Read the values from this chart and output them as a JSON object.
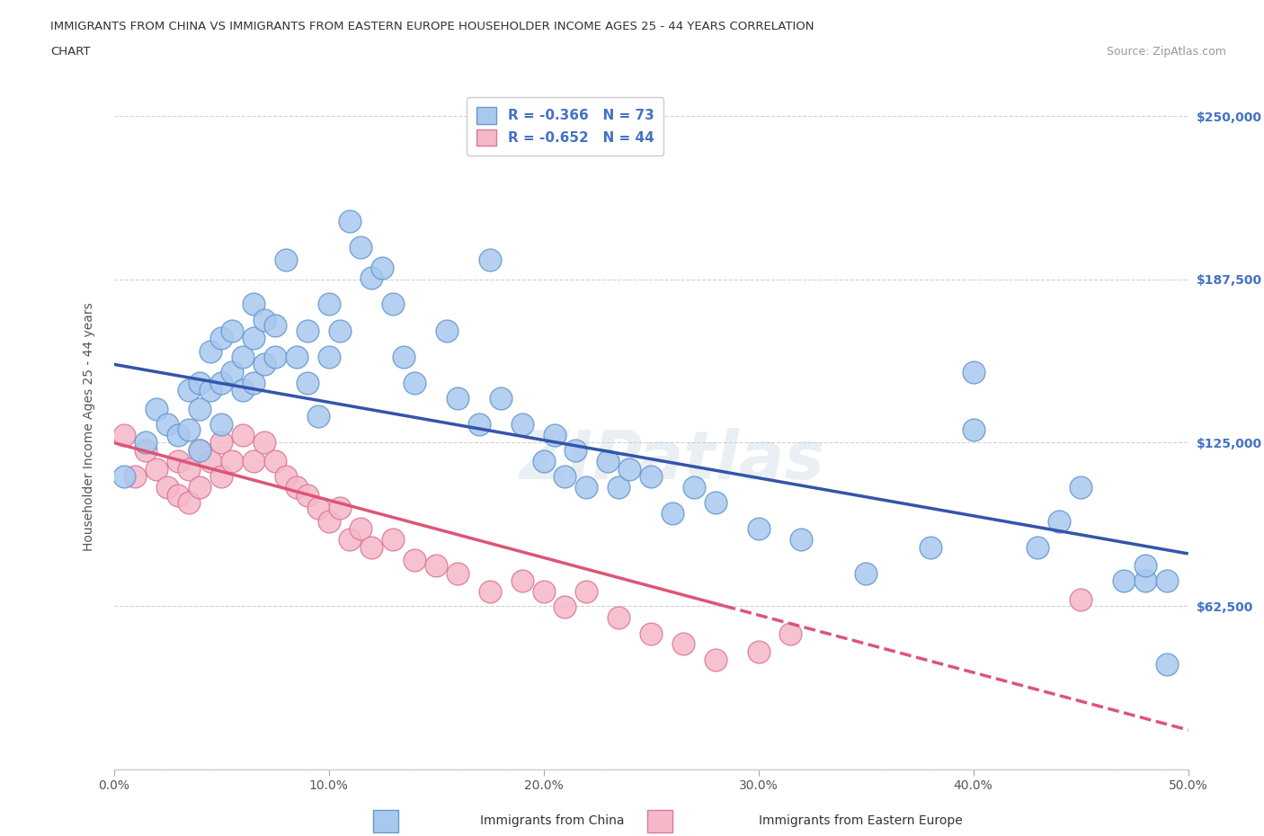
{
  "title_line1": "IMMIGRANTS FROM CHINA VS IMMIGRANTS FROM EASTERN EUROPE HOUSEHOLDER INCOME AGES 25 - 44 YEARS CORRELATION",
  "title_line2": "CHART",
  "source_text": "Source: ZipAtlas.com",
  "ylabel": "Householder Income Ages 25 - 44 years",
  "xlim": [
    0.0,
    0.5
  ],
  "ylim": [
    0,
    262500
  ],
  "xticks": [
    0.0,
    0.1,
    0.2,
    0.3,
    0.4,
    0.5
  ],
  "xticklabels": [
    "0.0%",
    "10.0%",
    "20.0%",
    "30.0%",
    "40.0%",
    "50.0%"
  ],
  "yticks": [
    0,
    62500,
    125000,
    187500,
    250000
  ],
  "yticklabels": [
    "",
    "$62,500",
    "$125,000",
    "$187,500",
    "$250,000"
  ],
  "china_color": "#A8C8EF",
  "china_edge_color": "#6699CC",
  "eastern_color": "#F5B8C8",
  "eastern_edge_color": "#DD7799",
  "china_R": -0.366,
  "china_N": 73,
  "eastern_R": -0.652,
  "eastern_N": 44,
  "trend_china_color": "#3355AA",
  "trend_eastern_color": "#DD5577",
  "watermark": "ZIPatlas",
  "grid_color": "#CCCCCC",
  "background_color": "#FFFFFF",
  "china_x": [
    0.005,
    0.015,
    0.02,
    0.025,
    0.03,
    0.035,
    0.035,
    0.04,
    0.04,
    0.04,
    0.045,
    0.045,
    0.05,
    0.05,
    0.05,
    0.055,
    0.055,
    0.06,
    0.06,
    0.065,
    0.065,
    0.065,
    0.07,
    0.07,
    0.075,
    0.075,
    0.08,
    0.085,
    0.09,
    0.09,
    0.095,
    0.1,
    0.1,
    0.105,
    0.11,
    0.115,
    0.12,
    0.125,
    0.13,
    0.135,
    0.14,
    0.155,
    0.16,
    0.17,
    0.175,
    0.18,
    0.19,
    0.2,
    0.205,
    0.21,
    0.215,
    0.22,
    0.23,
    0.235,
    0.24,
    0.25,
    0.26,
    0.27,
    0.28,
    0.3,
    0.32,
    0.35,
    0.38,
    0.4,
    0.4,
    0.43,
    0.44,
    0.45,
    0.47,
    0.48,
    0.48,
    0.49,
    0.49
  ],
  "china_y": [
    112000,
    125000,
    138000,
    132000,
    128000,
    145000,
    130000,
    148000,
    138000,
    122000,
    160000,
    145000,
    165000,
    148000,
    132000,
    168000,
    152000,
    158000,
    145000,
    178000,
    165000,
    148000,
    172000,
    155000,
    170000,
    158000,
    195000,
    158000,
    168000,
    148000,
    135000,
    158000,
    178000,
    168000,
    210000,
    200000,
    188000,
    192000,
    178000,
    158000,
    148000,
    168000,
    142000,
    132000,
    195000,
    142000,
    132000,
    118000,
    128000,
    112000,
    122000,
    108000,
    118000,
    108000,
    115000,
    112000,
    98000,
    108000,
    102000,
    92000,
    88000,
    75000,
    85000,
    130000,
    152000,
    85000,
    95000,
    108000,
    72000,
    72000,
    78000,
    40000,
    72000
  ],
  "eastern_x": [
    0.005,
    0.01,
    0.015,
    0.02,
    0.025,
    0.03,
    0.03,
    0.035,
    0.035,
    0.04,
    0.04,
    0.045,
    0.05,
    0.05,
    0.055,
    0.06,
    0.065,
    0.07,
    0.075,
    0.08,
    0.085,
    0.09,
    0.095,
    0.1,
    0.105,
    0.11,
    0.115,
    0.12,
    0.13,
    0.14,
    0.15,
    0.16,
    0.175,
    0.19,
    0.2,
    0.21,
    0.22,
    0.235,
    0.25,
    0.265,
    0.28,
    0.3,
    0.315,
    0.45
  ],
  "eastern_y": [
    128000,
    112000,
    122000,
    115000,
    108000,
    118000,
    105000,
    115000,
    102000,
    122000,
    108000,
    118000,
    125000,
    112000,
    118000,
    128000,
    118000,
    125000,
    118000,
    112000,
    108000,
    105000,
    100000,
    95000,
    100000,
    88000,
    92000,
    85000,
    88000,
    80000,
    78000,
    75000,
    68000,
    72000,
    68000,
    62000,
    68000,
    58000,
    52000,
    48000,
    42000,
    45000,
    52000,
    65000
  ],
  "trend_china_intercept": 155000,
  "trend_china_slope": -145000,
  "trend_eastern_intercept": 125000,
  "trend_eastern_slope": -220000
}
